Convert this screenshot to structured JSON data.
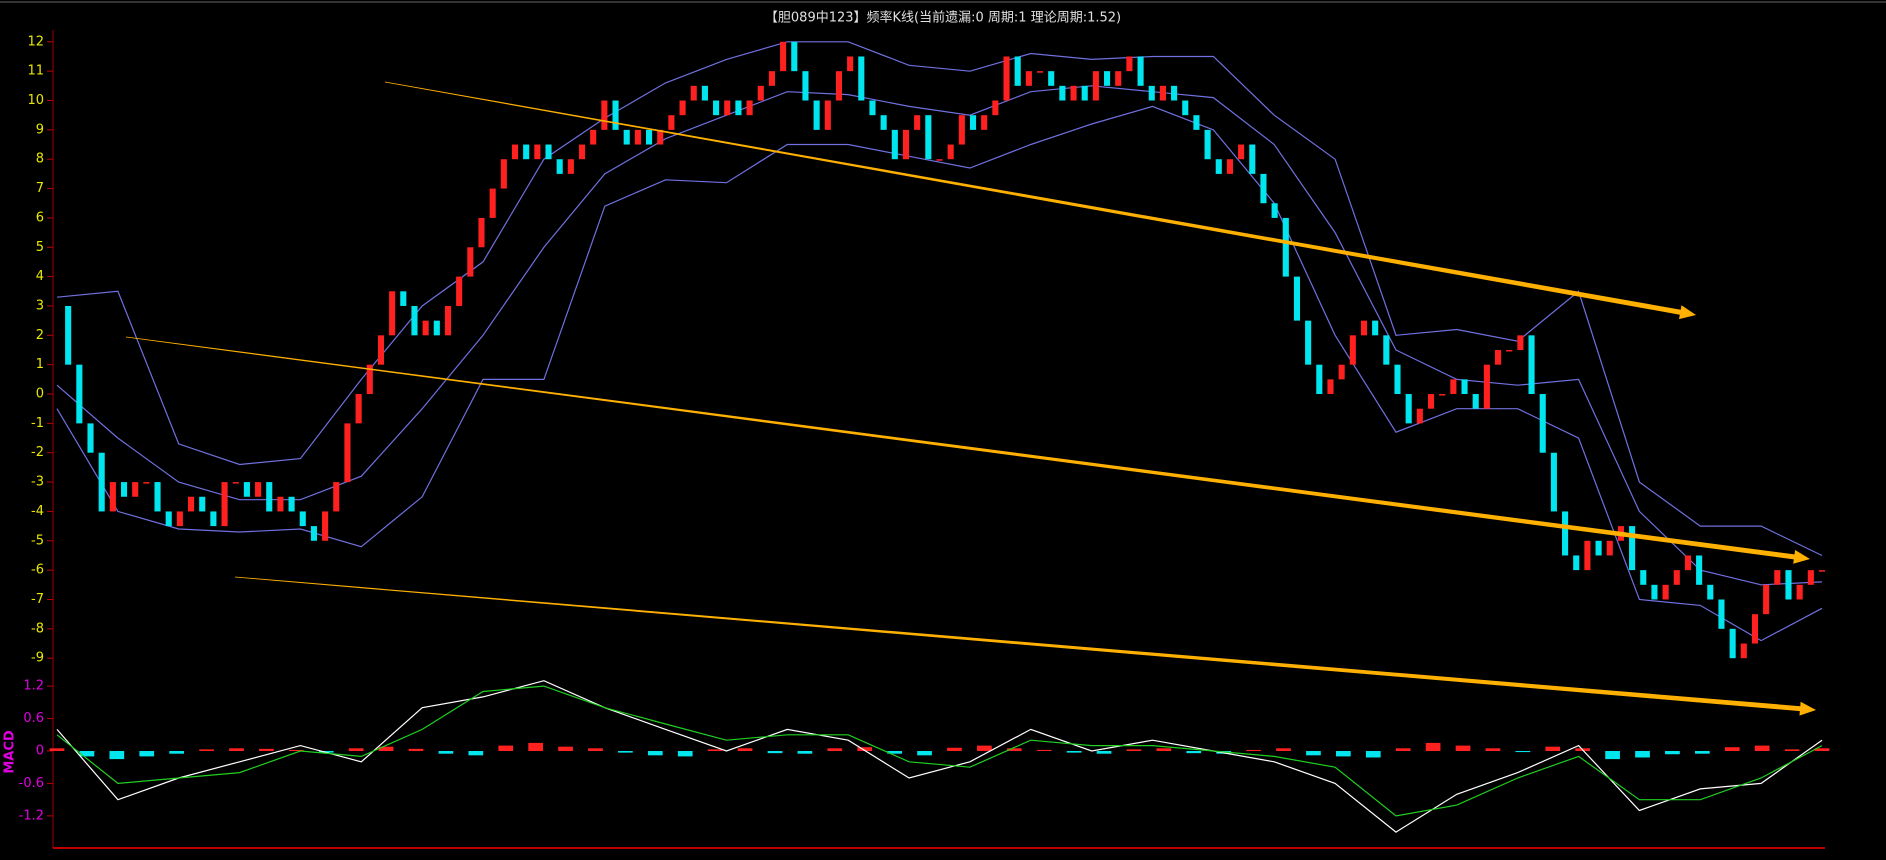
{
  "chart_data": [
    {
      "type": "candlestick",
      "title": "【胆089中123】频率K线(当前遗漏:0 周期:1 理论周期:1.52)",
      "close": [
        3,
        1,
        -1,
        -2,
        -4,
        -3,
        -3.5,
        -3,
        -3,
        -4,
        -4.5,
        -4,
        -3.5,
        -4,
        -4.5,
        -3,
        -3,
        -3.5,
        -3,
        -4,
        -3.5,
        -4,
        -4.5,
        -5,
        -4,
        -3,
        -1,
        0,
        1,
        2,
        3.5,
        3,
        2,
        2.5,
        2,
        3,
        4,
        5,
        6,
        7,
        8,
        8.5,
        8,
        8.5,
        8,
        7.5,
        8,
        8.5,
        9,
        10,
        9,
        8.5,
        9,
        8.5,
        9,
        9.5,
        10,
        10.5,
        10,
        9.5,
        10,
        9.5,
        10,
        10.5,
        11,
        12,
        11,
        10,
        9,
        10,
        11,
        11.5,
        10,
        9.5,
        9,
        8,
        9,
        9.5,
        8,
        8,
        8.5,
        9.5,
        9,
        9.5,
        10,
        11.5,
        10.5,
        11,
        11,
        10.5,
        10,
        10.5,
        10,
        11,
        10.5,
        11,
        11.5,
        10.5,
        10,
        10.5,
        10,
        9.5,
        9,
        8,
        7.5,
        8,
        8.5,
        7.5,
        6.5,
        6,
        4,
        2.5,
        1,
        0,
        0.5,
        1,
        2,
        2.5,
        2,
        1,
        0,
        -1,
        -0.5,
        0,
        0,
        0.5,
        0,
        -0.5,
        1,
        1.5,
        1.5,
        2,
        0,
        -2,
        -4,
        -5.5,
        -6,
        -5,
        -5.5,
        -5,
        -4.5,
        -6,
        -6.5,
        -7,
        -6.5,
        -6,
        -5.5,
        -6.5,
        -7,
        -8,
        -9,
        -8.5,
        -7.5,
        -6.5,
        -6,
        -7,
        -6.5,
        -6,
        -6
      ],
      "up_color": "#ff2020",
      "down_color": "#00e5ee",
      "series": [
        {
          "color": "#7070e0",
          "values": [
            3.3,
            3.5,
            -1.7,
            -2.4,
            -2.2,
            0.5,
            3,
            4.5,
            8,
            9.4,
            10.6,
            11.4,
            12,
            12,
            11.2,
            11,
            11.6,
            11.4,
            11.5,
            11.5,
            9.5,
            8,
            2,
            2.2,
            1.8,
            3.5,
            -3,
            -4.5,
            -4.5,
            -5.5
          ]
        },
        {
          "color": "#7070e0",
          "values": [
            0.3,
            -1.5,
            -3,
            -3.6,
            -3.6,
            -2.8,
            -0.5,
            2,
            5,
            7.5,
            8.7,
            9.5,
            10.3,
            10.2,
            9.8,
            9.5,
            10.3,
            10.5,
            10.3,
            10.1,
            8.5,
            5.5,
            1.5,
            0.5,
            0.3,
            0.5,
            -4,
            -6,
            -6.5,
            -6.4
          ]
        },
        {
          "color": "#7070e0",
          "values": [
            -0.5,
            -4,
            -4.6,
            -4.7,
            -4.6,
            -5.2,
            -3.5,
            0.5,
            0.5,
            6.4,
            7.3,
            7.2,
            8.5,
            8.5,
            8.1,
            7.7,
            8.5,
            9.2,
            9.8,
            9,
            6.5,
            2,
            -1.3,
            -0.5,
            -0.5,
            -1.5,
            -7,
            -7.2,
            -8.4,
            -7.3
          ]
        }
      ],
      "ylim": [
        -9.3,
        12.3
      ],
      "yticks": [
        -9,
        -8,
        -7,
        -6,
        -5,
        -4,
        -3,
        -2,
        -1,
        0,
        1,
        2,
        3,
        4,
        5,
        6,
        7,
        8,
        9,
        10,
        11,
        12
      ],
      "tick_color": "#e8e800"
    },
    {
      "type": "macd",
      "label": "MACD",
      "series": [
        {
          "color": "#ffffff",
          "values": [
            0.4,
            -0.9,
            -0.5,
            -0.2,
            0.1,
            -0.2,
            0.8,
            1.0,
            1.3,
            0.8,
            0.4,
            0.0,
            0.4,
            0.2,
            -0.5,
            -0.2,
            0.4,
            0.0,
            0.2,
            0.0,
            -0.2,
            -0.6,
            -1.5,
            -0.8,
            -0.4,
            0.1,
            -1.1,
            -0.7,
            -0.6,
            0.2
          ]
        },
        {
          "color": "#20d020",
          "values": [
            0.3,
            -0.6,
            -0.5,
            -0.4,
            0.0,
            -0.1,
            0.4,
            1.1,
            1.2,
            0.8,
            0.5,
            0.2,
            0.3,
            0.3,
            -0.2,
            -0.3,
            0.2,
            0.1,
            0.1,
            0.0,
            -0.1,
            -0.3,
            -1.2,
            -1.0,
            -0.5,
            -0.1,
            -0.9,
            -0.9,
            -0.5,
            0.1
          ]
        }
      ],
      "values": [
        0.05,
        -0.1,
        -0.15,
        -0.1,
        -0.05,
        0.03,
        0.05,
        0.04,
        0.02,
        -0.03,
        0.05,
        0.08,
        0.04,
        -0.05,
        -0.08,
        0.1,
        0.15,
        0.08,
        0.05,
        -0.03,
        -0.08,
        -0.1,
        0.03,
        0.05,
        -0.04,
        -0.05,
        0.05,
        0.07,
        -0.05,
        -0.08,
        0.06,
        0.1,
        0.05,
        0.02,
        -0.03,
        -0.05,
        0.03,
        0.05,
        -0.04,
        -0.05,
        0.02,
        0.05,
        -0.08,
        -0.1,
        -0.12,
        0.05,
        0.15,
        0.1,
        0.05,
        -0.02,
        0.08,
        0.05,
        -0.15,
        -0.12,
        -0.06,
        -0.05,
        0.07,
        0.1,
        0.03,
        0.05
      ],
      "up_color": "#ff2020",
      "down_color": "#00e5ee",
      "ylim": [
        -1.35,
        1.35
      ],
      "yticks": [
        -1.2,
        -0.6,
        0,
        0.6,
        1.2
      ],
      "tick_color": "#e000e0"
    }
  ]
}
